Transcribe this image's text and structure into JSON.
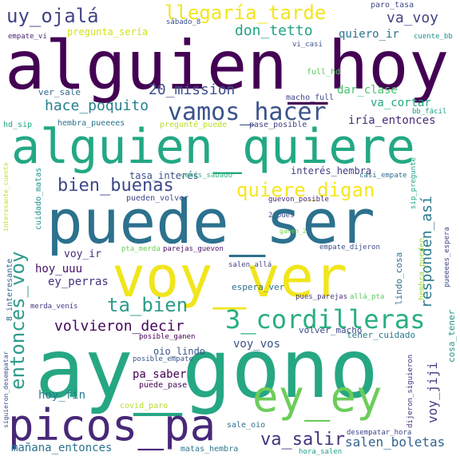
{
  "words": [
    {
      "text": "alguien_hoy",
      "color": "#440154",
      "rot": 0
    },
    {
      "text": "alguien_quiere",
      "color": "#23a884",
      "rot": 0
    },
    {
      "text": "puede_ser",
      "color": "#2c718e",
      "rot": 0
    },
    {
      "text": "voy_ver",
      "color": "#f1e51d",
      "rot": 0
    },
    {
      "text": "ay_gono",
      "color": "#26a784",
      "rot": 0
    },
    {
      "text": "ey_ey",
      "color": "#6ccd5a",
      "rot": 0
    },
    {
      "text": "picos_pa",
      "color": "#482878",
      "rot": 0
    },
    {
      "text": "3_cordilleras",
      "color": "#29af7f",
      "rot": 0
    },
    {
      "text": "vamos_hacer",
      "color": "#3b528b",
      "rot": 0
    },
    {
      "text": "quiere_digan",
      "color": "#f6e620",
      "rot": 0
    },
    {
      "text": "llegaría_tarde",
      "color": "#f3e51e",
      "rot": 0
    },
    {
      "text": "uy_ojalá",
      "color": "#414487",
      "rot": 0
    },
    {
      "text": "bien_buenas",
      "color": "#3e4989",
      "rot": 0
    },
    {
      "text": "ta_bien",
      "color": "#2e9c8b",
      "rot": 0
    },
    {
      "text": "volvieron_decir",
      "color": "#450559",
      "rot": 0
    },
    {
      "text": "entonces_voy",
      "color": "#2e9c8b",
      "rot": -90
    },
    {
      "text": "va_salir",
      "color": "#45337d",
      "rot": 0
    },
    {
      "text": "hace_poquito",
      "color": "#27808e",
      "rot": 0
    },
    {
      "text": "20_mission",
      "color": "#3d4e8a",
      "rot": 0
    },
    {
      "text": "don_tetto",
      "color": "#20a386",
      "rot": 0
    },
    {
      "text": "va_voy",
      "color": "#414487",
      "rot": 0
    },
    {
      "text": "responden_así",
      "color": "#2a788e",
      "rot": -90
    },
    {
      "text": "voy_jiji",
      "color": "#433e85",
      "rot": -90
    },
    {
      "text": "salen_boletas",
      "color": "#33628d",
      "rot": 0
    },
    {
      "text": "mañana_entonces",
      "color": "#2c718e",
      "rot": 0
    },
    {
      "text": "quiero_ir",
      "color": "#2c738e",
      "rot": 0
    },
    {
      "text": "iría_entonces",
      "color": "#472d7b",
      "rot": 0
    },
    {
      "text": "va_cortar",
      "color": "#22a785",
      "rot": 0
    },
    {
      "text": "dar_clase",
      "color": "#4ac16d",
      "rot": 0
    },
    {
      "text": "voy_vos",
      "color": "#3b528b",
      "rot": 0
    },
    {
      "text": "ey_perras",
      "color": "#46327e",
      "rot": 0
    },
    {
      "text": "hoy_uuu",
      "color": "#471063",
      "rot": 0
    },
    {
      "text": "pa_saber",
      "color": "#440154",
      "rot": 0
    },
    {
      "text": "hoy_fin",
      "color": "#2a788e",
      "rot": 0
    },
    {
      "text": "pregunta_sería",
      "color": "#d2e21b",
      "rot": 0
    },
    {
      "text": "paro_tasa",
      "color": "#3e4989",
      "rot": 0
    },
    {
      "text": "sábado_8",
      "color": "#3d4d8a",
      "rot": 0
    },
    {
      "text": "empate_vi",
      "color": "#482576",
      "rot": 0
    },
    {
      "text": "cuente_bb",
      "color": "#21918c",
      "rot": 0
    },
    {
      "text": "vi_casi",
      "color": "#3b528b",
      "rot": 0
    },
    {
      "text": "ver_sale",
      "color": "#31688e",
      "rot": 0
    },
    {
      "text": "full_hd",
      "color": "#5ec962",
      "rot": 0
    },
    {
      "text": "macho_full",
      "color": "#3f4788",
      "rot": 0
    },
    {
      "text": "bb_fácil",
      "color": "#1f9e89",
      "rot": 0
    },
    {
      "text": "hd_sip",
      "color": "#22a884",
      "rot": 0
    },
    {
      "text": "hembra_pueeees",
      "color": "#2c728e",
      "rot": 0
    },
    {
      "text": "pregunté_puede",
      "color": "#b5de2b",
      "rot": 0
    },
    {
      "text": "pase_posible",
      "color": "#424086",
      "rot": 0
    },
    {
      "text": "tasa_interés",
      "color": "#3b528b",
      "rot": 0
    },
    {
      "text": "venís_sábado",
      "color": "#31b57b",
      "rot": 0
    },
    {
      "text": "interés_hembra",
      "color": "#424086",
      "rot": 0
    },
    {
      "text": "casi_empate",
      "color": "#2d708e",
      "rot": 0
    },
    {
      "text": "sip_pregunté",
      "color": "#20a486",
      "rot": -90
    },
    {
      "text": "interesante_cuente",
      "color": "#c2df23",
      "rot": -90
    },
    {
      "text": "cuidado_matas",
      "color": "#21918c",
      "rot": -90
    },
    {
      "text": "pueden_volver",
      "color": "#3e4989",
      "rot": 0
    },
    {
      "text": "guevon_posible",
      "color": "#482878",
      "rot": 0
    },
    {
      "text": "2_pues",
      "color": "#3b528b",
      "rot": 0
    },
    {
      "text": "ganen_2",
      "color": "#7ad151",
      "rot": 0
    },
    {
      "text": "pta_merda",
      "color": "#6ece58",
      "rot": 0
    },
    {
      "text": "parejas_guevon",
      "color": "#471365",
      "rot": 0
    },
    {
      "text": "empate_dijeron",
      "color": "#3d4e8a",
      "rot": 0
    },
    {
      "text": "salen_allá",
      "color": "#404588",
      "rot": 0
    },
    {
      "text": "espera_ver",
      "color": "#2e6d8e",
      "rot": 0
    },
    {
      "text": "voy_ir",
      "color": "#472c7a",
      "rot": 0
    },
    {
      "text": "8_interesante",
      "color": "#31668e",
      "rot": -90
    },
    {
      "text": "merda_venís",
      "color": "#453882",
      "rot": 0
    },
    {
      "text": "pues_parejas",
      "color": "#46337f",
      "rot": 0
    },
    {
      "text": "allá_pta",
      "color": "#5ec962",
      "rot": 0
    },
    {
      "text": "lindo_cosa",
      "color": "#2e6f8e",
      "rot": -90
    },
    {
      "text": "hembra_pueden",
      "color": "#a0da39",
      "rot": -90
    },
    {
      "text": "pueeees_espera",
      "color": "#3f4889",
      "rot": -90
    },
    {
      "text": "posible_ganen",
      "color": "#440154",
      "rot": 0
    },
    {
      "text": "volver_macho",
      "color": "#3e4a89",
      "rot": 0
    },
    {
      "text": "tener_cuidado",
      "color": "#2a788e",
      "rot": 0
    },
    {
      "text": "oio_lindo",
      "color": "#3b528b",
      "rot": 0
    },
    {
      "text": "posible_empate",
      "color": "#39568c",
      "rot": 0
    },
    {
      "text": "cosa_tener",
      "color": "#21918c",
      "rot": -90
    },
    {
      "text": "puede_pase",
      "color": "#440154",
      "rot": 0
    },
    {
      "text": "siguieron_desempatar",
      "color": "#3b528b",
      "rot": -90
    },
    {
      "text": "covid_paro",
      "color": "#b5de2b",
      "rot": 0
    },
    {
      "text": "sale_oio",
      "color": "#2c718e",
      "rot": 0
    },
    {
      "text": "desempatar_hora",
      "color": "#3f4788",
      "rot": 0
    },
    {
      "text": "dijeron_siguieron",
      "color": "#46327e",
      "rot": -90
    },
    {
      "text": "matas_hembra",
      "color": "#2a788e",
      "rot": 0
    },
    {
      "text": "hora_salen",
      "color": "#1f9e89",
      "rot": 0
    }
  ]
}
